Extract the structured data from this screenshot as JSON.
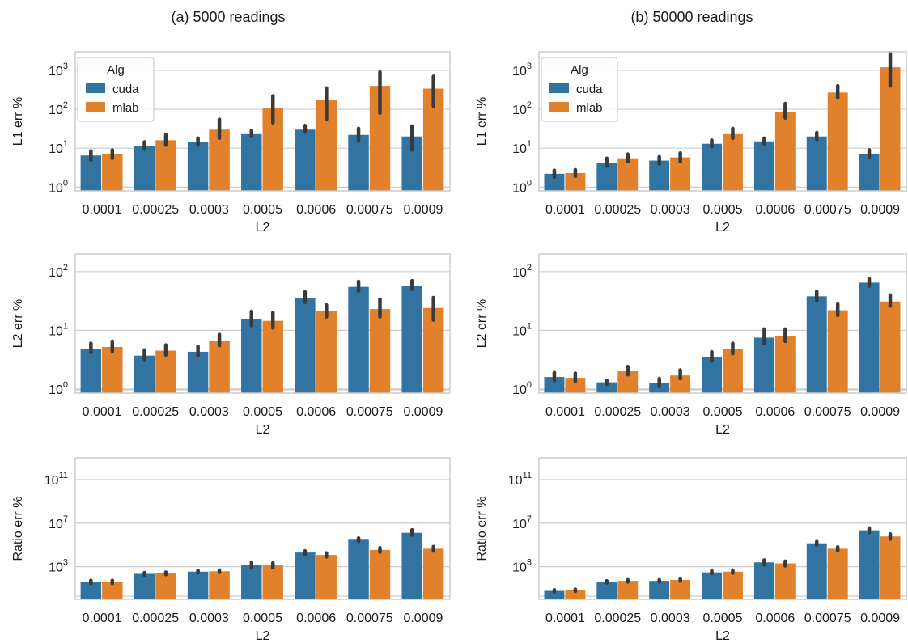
{
  "colors": {
    "cuda": "#3274a1",
    "mlab": "#e1812c",
    "errorbar": "#3a3a3a",
    "grid": "#cccccc",
    "frame": "#cccccc"
  },
  "columns": [
    {
      "title": "(a) 5000 readings"
    },
    {
      "title": "(b) 50000 readings"
    }
  ],
  "legend": {
    "title": "Alg",
    "entries": [
      "cuda",
      "mlab"
    ],
    "placement": "upper-left"
  },
  "chart_data": [
    {
      "type": "bar",
      "column": 0,
      "row": 0,
      "title": "(a) 5000 readings",
      "xlabel": "L2",
      "ylabel": "L1 err %",
      "yscale": "log",
      "ylim": [
        0.8,
        3000
      ],
      "yticks": [
        1,
        10,
        100,
        1000
      ],
      "show_legend": true,
      "categories": [
        "0.0001",
        "0.00025",
        "0.0003",
        "0.0005",
        "0.0006",
        "0.00075",
        "0.0009"
      ],
      "series": [
        {
          "name": "cuda",
          "values": [
            6.5,
            11.5,
            14.5,
            23,
            30,
            22,
            20
          ],
          "err_low": [
            5,
            9.5,
            12,
            20,
            26,
            16,
            9
          ],
          "err_high": [
            8.5,
            14.5,
            18,
            28,
            38,
            32,
            37
          ]
        },
        {
          "name": "mlab",
          "values": [
            7,
            16,
            30,
            110,
            170,
            400,
            340
          ],
          "err_low": [
            5.5,
            12,
            18,
            45,
            55,
            80,
            120
          ],
          "err_high": [
            9,
            22,
            55,
            220,
            350,
            900,
            700
          ]
        }
      ]
    },
    {
      "type": "bar",
      "column": 1,
      "row": 0,
      "title": "(b) 50000 readings",
      "xlabel": "L2",
      "ylabel": "L1 err %",
      "yscale": "log",
      "ylim": [
        0.8,
        3000
      ],
      "yticks": [
        1,
        10,
        100,
        1000
      ],
      "show_legend": true,
      "categories": [
        "0.0001",
        "0.00025",
        "0.0003",
        "0.0005",
        "0.0006",
        "0.00075",
        "0.0009"
      ],
      "series": [
        {
          "name": "cuda",
          "values": [
            2.2,
            4.2,
            4.8,
            13,
            15,
            20,
            7
          ],
          "err_low": [
            1.8,
            3.5,
            4,
            11,
            13,
            17,
            6
          ],
          "err_high": [
            2.7,
            5.5,
            6,
            16,
            18,
            25,
            9
          ]
        },
        {
          "name": "mlab",
          "values": [
            2.3,
            5.5,
            5.8,
            23,
            85,
            270,
            1200
          ],
          "err_low": [
            1.9,
            4.5,
            4.5,
            18,
            60,
            200,
            400
          ],
          "err_high": [
            2.8,
            7,
            7.5,
            32,
            140,
            400,
            2800
          ]
        }
      ]
    },
    {
      "type": "bar",
      "column": 0,
      "row": 1,
      "xlabel": "L2",
      "ylabel": "L2 err %",
      "yscale": "log",
      "ylim": [
        0.85,
        200
      ],
      "yticks": [
        1,
        10,
        100
      ],
      "show_legend": false,
      "categories": [
        "0.0001",
        "0.00025",
        "0.0003",
        "0.0005",
        "0.0006",
        "0.00075",
        "0.0009"
      ],
      "series": [
        {
          "name": "cuda",
          "values": [
            4.8,
            3.7,
            4.3,
            15.5,
            36,
            55,
            58
          ],
          "err_low": [
            4.2,
            3.2,
            3.7,
            12,
            30,
            47,
            50
          ],
          "err_high": [
            6,
            4.6,
            5.3,
            21,
            45,
            68,
            70
          ]
        },
        {
          "name": "mlab",
          "values": [
            5.2,
            4.5,
            6.7,
            14.5,
            21,
            23,
            24
          ],
          "err_low": [
            4.4,
            3.8,
            5.5,
            11,
            17,
            17,
            15
          ],
          "err_high": [
            6.5,
            5.6,
            8.5,
            20,
            27,
            34,
            36
          ]
        }
      ]
    },
    {
      "type": "bar",
      "column": 1,
      "row": 1,
      "xlabel": "L2",
      "ylabel": "L2 err %",
      "yscale": "log",
      "ylim": [
        0.85,
        200
      ],
      "yticks": [
        1,
        10,
        100
      ],
      "show_legend": false,
      "categories": [
        "0.0001",
        "0.00025",
        "0.0003",
        "0.0005",
        "0.0006",
        "0.00075",
        "0.0009"
      ],
      "series": [
        {
          "name": "cuda",
          "values": [
            1.6,
            1.3,
            1.25,
            3.5,
            7.5,
            38,
            65
          ],
          "err_low": [
            1.4,
            1.2,
            1.1,
            3,
            6,
            32,
            57
          ],
          "err_high": [
            1.9,
            1.4,
            1.5,
            4.3,
            10.5,
            46,
            75
          ]
        },
        {
          "name": "mlab",
          "values": [
            1.55,
            2.0,
            1.7,
            4.8,
            8.0,
            22,
            31
          ],
          "err_low": [
            1.35,
            1.75,
            1.5,
            4,
            6.5,
            18,
            26
          ],
          "err_high": [
            1.85,
            2.4,
            2.1,
            6,
            10.5,
            28,
            40
          ]
        }
      ]
    },
    {
      "type": "bar",
      "column": 0,
      "row": 2,
      "xlabel": "L2",
      "ylabel": "Ratio err %",
      "yscale": "log",
      "ylim": [
        1,
        10000000000000.0
      ],
      "yticks": [
        1000,
        10000000,
        100000000000
      ],
      "show_legend": false,
      "categories": [
        "0.0001",
        "0.00025",
        "0.0003",
        "0.0005",
        "0.0006",
        "0.00075",
        "0.0009"
      ],
      "series": [
        {
          "name": "cuda",
          "values": [
            40,
            220,
            350,
            1500,
            20000,
            300000,
            1300000
          ],
          "err_low": [
            30,
            170,
            280,
            900,
            14000,
            220000,
            800000
          ],
          "err_high": [
            55,
            280,
            450,
            2500,
            28000,
            420000,
            2400000
          ]
        },
        {
          "name": "mlab",
          "values": [
            40,
            240,
            380,
            1300,
            12000,
            35000,
            45000
          ],
          "err_low": [
            30,
            190,
            300,
            800,
            8000,
            22000,
            28000
          ],
          "err_high": [
            55,
            310,
            480,
            2200,
            18000,
            55000,
            70000
          ]
        }
      ]
    },
    {
      "type": "bar",
      "column": 1,
      "row": 2,
      "xlabel": "L2",
      "ylabel": "Ratio err %",
      "yscale": "log",
      "ylim": [
        1,
        10000000000000.0
      ],
      "yticks": [
        1000,
        10000000,
        100000000000
      ],
      "show_legend": false,
      "categories": [
        "0.0001",
        "0.00025",
        "0.0003",
        "0.0005",
        "0.0006",
        "0.00075",
        "0.0009"
      ],
      "series": [
        {
          "name": "cuda",
          "values": [
            6,
            40,
            50,
            300,
            2500,
            140000,
            2200000
          ],
          "err_low": [
            5,
            33,
            40,
            230,
            1500,
            100000,
            1400000
          ],
          "err_high": [
            7.5,
            50,
            62,
            420,
            4000,
            200000,
            3500000
          ]
        },
        {
          "name": "mlab",
          "values": [
            7,
            50,
            60,
            350,
            2000,
            45000,
            600000
          ],
          "err_low": [
            5.5,
            40,
            48,
            260,
            1200,
            30000,
            350000
          ],
          "err_high": [
            8.5,
            62,
            75,
            480,
            3200,
            65000,
            1000000
          ]
        }
      ]
    }
  ]
}
